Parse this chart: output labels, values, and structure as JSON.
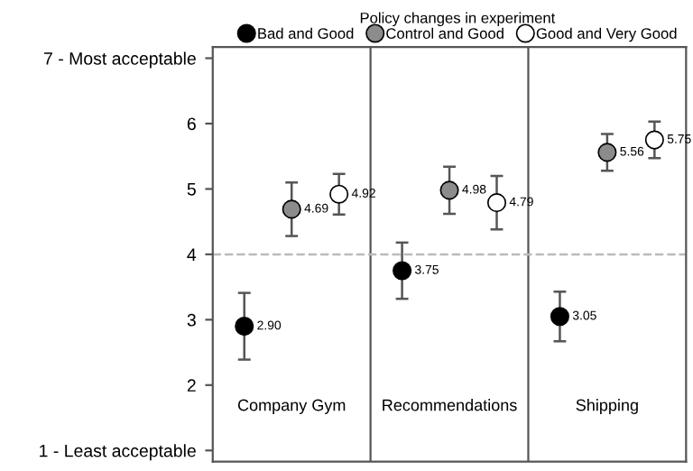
{
  "chart_data": {
    "type": "scatter",
    "legend_title": "Policy changes in experiment",
    "legend": "top",
    "categories": [
      "Company Gym",
      "Recommendations",
      "Shipping"
    ],
    "ylim": [
      0.83,
      7.17
    ],
    "yticks": [
      {
        "value": 1,
        "label": "1 - Least acceptable"
      },
      2,
      3,
      4,
      5,
      6,
      {
        "value": 7,
        "label": "7 - Most acceptable"
      }
    ],
    "grid": false,
    "marker": "circle",
    "ref_lines": [
      {
        "axis": "y",
        "value": 4,
        "color": "#bbbbbb",
        "line_style": "dashed"
      }
    ],
    "series": [
      {
        "name": "Bad and Good",
        "color": "#000000",
        "values": [
          2.9,
          3.75,
          3.05
        ],
        "errors": [
          0.51,
          0.43,
          0.38
        ],
        "value_labels": [
          "2.90",
          "3.75",
          "3.05"
        ]
      },
      {
        "name": "Control and Good",
        "color": "#8c8c8c",
        "values": [
          4.69,
          4.98,
          5.56
        ],
        "errors": [
          0.41,
          0.36,
          0.28
        ],
        "value_labels": [
          "4.69",
          "4.98",
          "5.56"
        ]
      },
      {
        "name": "Good and Very Good",
        "color": "#ffffff",
        "values": [
          4.92,
          4.79,
          5.75
        ],
        "errors": [
          0.31,
          0.41,
          0.28
        ],
        "value_labels": [
          "4.92",
          "4.79",
          "5.75"
        ]
      }
    ]
  }
}
